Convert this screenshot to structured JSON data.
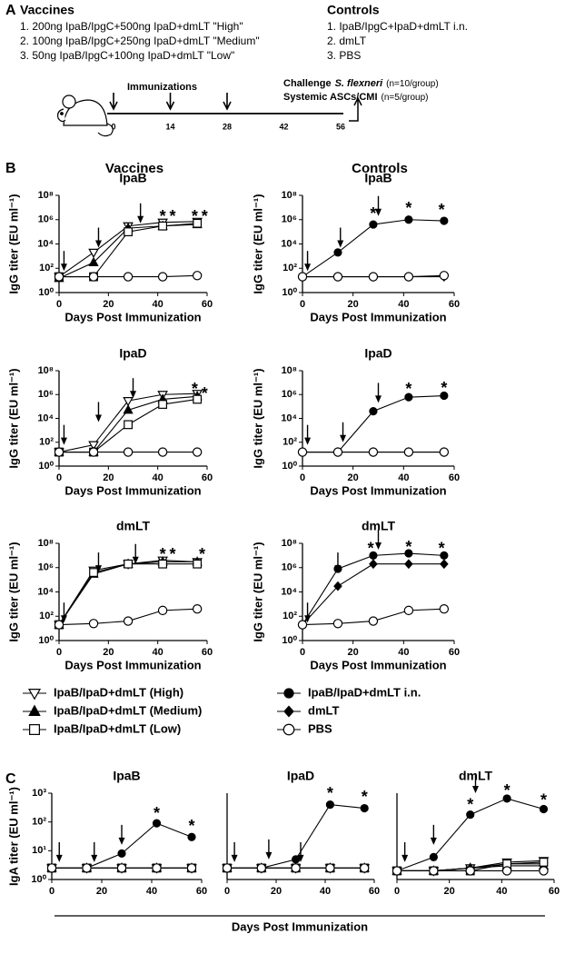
{
  "panel_a": {
    "letter": "A",
    "vaccines": {
      "title": "Vaccines",
      "items": [
        "1. 200ng IpaB/IpgC+500ng IpaD+dmLT \"High\"",
        "2. 100ng IpaB/IpgC+250ng IpaD+dmLT \"Medium\"",
        "3. 50ng IpaB/IpgC+100ng IpaD+dmLT \"Low\""
      ]
    },
    "controls": {
      "title": "Controls",
      "items": [
        "1. IpaB/IpgC+IpaD+dmLT i.n.",
        "2. dmLT",
        "3. PBS"
      ]
    },
    "timeline": {
      "label": "Immunizations",
      "days": [
        0,
        14,
        28,
        42,
        56
      ],
      "immunizations": [
        0,
        14,
        28
      ],
      "challenge": [
        "Challenge",
        "S. flexneri",
        "(n=10/group)"
      ],
      "systemic": [
        "Systemic ASCs/CMI",
        "(n=5/group)"
      ]
    }
  },
  "panel_b": {
    "letter": "B",
    "column_titles": [
      "Vaccines",
      "Controls"
    ],
    "legend": [
      {
        "name": "IpaB/IpaD+dmLT (High)",
        "marker": "triangle-down-open"
      },
      {
        "name": "IpaB/IpaD+dmLT (Medium)",
        "marker": "triangle-up-filled"
      },
      {
        "name": "IpaB/IpaD+dmLT (Low)",
        "marker": "square-open"
      },
      {
        "name": "IpaB/IpaD+dmLT i.n.",
        "marker": "circle-filled"
      },
      {
        "name": "dmLT",
        "marker": "diamond-filled"
      },
      {
        "name": "PBS",
        "marker": "circle-open"
      }
    ]
  },
  "panel_c": {
    "letter": "C",
    "x_label": "Days Post Immunization"
  },
  "chart_data": [
    {
      "type": "line",
      "title": "IpaB",
      "x_label": "Days Post Immunization",
      "y_label": "IgG titer (EU ml⁻¹)",
      "log_y": true,
      "xlim": [
        0,
        60
      ],
      "xticks": [
        0,
        20,
        40,
        60
      ],
      "ylim": [
        1,
        100000000
      ],
      "yticks": [
        {
          "value": 1,
          "label": "10⁰"
        },
        {
          "value": 100,
          "label": "10²"
        },
        {
          "value": 10000,
          "label": "10⁴"
        },
        {
          "value": 1000000,
          "label": "10⁶"
        },
        {
          "value": 100000000,
          "label": "10⁸"
        }
      ],
      "x": [
        0,
        14,
        28,
        42,
        56
      ],
      "series": [
        {
          "marker": "triangle-down-open",
          "values": [
            20,
            2000,
            300000,
            600000,
            700000
          ]
        },
        {
          "marker": "triangle-up-filled",
          "values": [
            15,
            300,
            200000,
            300000,
            400000
          ]
        },
        {
          "marker": "square-open",
          "values": [
            20,
            20,
            100000,
            300000,
            500000
          ]
        },
        {
          "marker": "circle-open",
          "values": [
            20,
            20,
            20,
            20,
            25
          ]
        }
      ],
      "arrows": [
        {
          "x": 2,
          "y": 60
        },
        {
          "x": 16,
          "y": 5000
        },
        {
          "x": 33,
          "y": 500000
        }
      ],
      "annotations": [
        {
          "text": "*",
          "x": 42,
          "y": 3000000
        },
        {
          "text": "*",
          "x": 46,
          "y": 3000000
        },
        {
          "text": "*",
          "x": 55,
          "y": 3000000
        },
        {
          "text": "*",
          "x": 59,
          "y": 3000000
        }
      ]
    },
    {
      "type": "line",
      "title": "IpaB",
      "x_label": "Days Post Immunization",
      "y_label": "IgG titer (EU ml⁻¹)",
      "log_y": true,
      "xlim": [
        0,
        60
      ],
      "xticks": [
        0,
        20,
        40,
        60
      ],
      "ylim": [
        1,
        100000000
      ],
      "yticks": [
        {
          "value": 1,
          "label": "10⁰"
        },
        {
          "value": 100,
          "label": "10²"
        },
        {
          "value": 10000,
          "label": "10⁴"
        },
        {
          "value": 1000000,
          "label": "10⁶"
        },
        {
          "value": 100000000,
          "label": "10⁸"
        }
      ],
      "x": [
        0,
        14,
        28,
        42,
        56
      ],
      "series": [
        {
          "marker": "circle-filled",
          "values": [
            20,
            2000,
            400000,
            1000000,
            800000
          ]
        },
        {
          "marker": "diamond-filled",
          "values": [
            20,
            20,
            20,
            20,
            20
          ]
        },
        {
          "marker": "circle-open",
          "values": [
            20,
            20,
            20,
            20,
            25
          ]
        }
      ],
      "arrows": [
        {
          "x": 2,
          "y": 60
        },
        {
          "x": 15,
          "y": 5000
        },
        {
          "x": 30,
          "y": 2000000
        }
      ],
      "annotations": [
        {
          "text": "*",
          "x": 28,
          "y": 5000000
        },
        {
          "text": "*",
          "x": 42,
          "y": 15000000
        },
        {
          "text": "*",
          "x": 55,
          "y": 10000000
        }
      ]
    },
    {
      "type": "line",
      "title": "IpaD",
      "x_label": "Days Post Immunization",
      "y_label": "IgG titer (EU ml⁻¹)",
      "log_y": true,
      "xlim": [
        0,
        60
      ],
      "xticks": [
        0,
        20,
        40,
        60
      ],
      "ylim": [
        1,
        100000000
      ],
      "yticks": [
        {
          "value": 1,
          "label": "10⁰"
        },
        {
          "value": 100,
          "label": "10²"
        },
        {
          "value": 10000,
          "label": "10⁴"
        },
        {
          "value": 1000000,
          "label": "10⁶"
        },
        {
          "value": 100000000,
          "label": "10⁸"
        }
      ],
      "x": [
        0,
        14,
        28,
        42,
        56
      ],
      "series": [
        {
          "marker": "triangle-down-open",
          "values": [
            15,
            60,
            300000,
            1000000,
            1200000
          ]
        },
        {
          "marker": "triangle-up-filled",
          "values": [
            15,
            15,
            50000,
            400000,
            700000
          ]
        },
        {
          "marker": "square-open",
          "values": [
            15,
            15,
            3000,
            150000,
            400000
          ]
        },
        {
          "marker": "circle-open",
          "values": [
            15,
            15,
            15,
            15,
            15
          ]
        }
      ],
      "arrows": [
        {
          "x": 2,
          "y": 60
        },
        {
          "x": 16,
          "y": 5000
        },
        {
          "x": 30,
          "y": 500000
        }
      ],
      "annotations": [
        {
          "text": "*",
          "x": 55,
          "y": 5000000
        },
        {
          "text": "*",
          "x": 59,
          "y": 2000000
        }
      ]
    },
    {
      "type": "line",
      "title": "IpaD",
      "x_label": "Days Post Immunization",
      "y_label": "IgG titer (EU ml⁻¹)",
      "log_y": true,
      "xlim": [
        0,
        60
      ],
      "xticks": [
        0,
        20,
        40,
        60
      ],
      "ylim": [
        1,
        100000000
      ],
      "yticks": [
        {
          "value": 1,
          "label": "10⁰"
        },
        {
          "value": 100,
          "label": "10²"
        },
        {
          "value": 10000,
          "label": "10⁴"
        },
        {
          "value": 1000000,
          "label": "10⁶"
        },
        {
          "value": 100000000,
          "label": "10⁸"
        }
      ],
      "x": [
        0,
        14,
        28,
        42,
        56
      ],
      "series": [
        {
          "marker": "circle-filled",
          "values": [
            15,
            15,
            40000,
            600000,
            800000
          ]
        },
        {
          "marker": "diamond-filled",
          "values": [
            15,
            15,
            15,
            15,
            15
          ]
        },
        {
          "marker": "circle-open",
          "values": [
            15,
            15,
            15,
            15,
            15
          ]
        }
      ],
      "arrows": [
        {
          "x": 2,
          "y": 60
        },
        {
          "x": 16,
          "y": 100
        },
        {
          "x": 30,
          "y": 200000
        }
      ],
      "annotations": [
        {
          "text": "*",
          "x": 42,
          "y": 5000000
        },
        {
          "text": "*",
          "x": 56,
          "y": 6000000
        }
      ]
    },
    {
      "type": "line",
      "title": "dmLT",
      "x_label": "Days Post Immunization",
      "y_label": "IgG titer (EU ml⁻¹)",
      "log_y": true,
      "xlim": [
        0,
        60
      ],
      "xticks": [
        0,
        20,
        40,
        60
      ],
      "ylim": [
        1,
        100000000
      ],
      "yticks": [
        {
          "value": 1,
          "label": "10⁰"
        },
        {
          "value": 100,
          "label": "10²"
        },
        {
          "value": 10000,
          "label": "10⁴"
        },
        {
          "value": 1000000,
          "label": "10⁶"
        },
        {
          "value": 100000000,
          "label": "10⁸"
        }
      ],
      "x": [
        0,
        14,
        28,
        42,
        56
      ],
      "series": [
        {
          "marker": "triangle-down-open",
          "values": [
            20,
            600000,
            2000000,
            4000000,
            3000000
          ]
        },
        {
          "marker": "triangle-up-filled",
          "values": [
            20,
            300000,
            2000000,
            3000000,
            3000000
          ]
        },
        {
          "marker": "square-open",
          "values": [
            20,
            400000,
            2000000,
            2000000,
            2000000
          ]
        },
        {
          "marker": "circle-open",
          "values": [
            20,
            25,
            40,
            300,
            400
          ]
        }
      ],
      "arrows": [
        {
          "x": 2,
          "y": 30
        },
        {
          "x": 16,
          "y": 400000
        },
        {
          "x": 31,
          "y": 2000000
        }
      ],
      "annotations": [
        {
          "text": "*",
          "x": 42,
          "y": 20000000
        },
        {
          "text": "*",
          "x": 46,
          "y": 20000000
        },
        {
          "text": "*",
          "x": 58,
          "y": 20000000
        }
      ]
    },
    {
      "type": "line",
      "title": "dmLT",
      "x_label": "Days Post Immunization",
      "y_label": "IgG titer (EU ml⁻¹)",
      "log_y": true,
      "xlim": [
        0,
        60
      ],
      "xticks": [
        0,
        20,
        40,
        60
      ],
      "ylim": [
        1,
        100000000
      ],
      "yticks": [
        {
          "value": 1,
          "label": "10⁰"
        },
        {
          "value": 100,
          "label": "10²"
        },
        {
          "value": 10000,
          "label": "10⁴"
        },
        {
          "value": 1000000,
          "label": "10⁶"
        },
        {
          "value": 100000000,
          "label": "10⁸"
        }
      ],
      "x": [
        0,
        14,
        28,
        42,
        56
      ],
      "series": [
        {
          "marker": "circle-filled",
          "values": [
            20,
            800000,
            10000000,
            15000000,
            10000000
          ]
        },
        {
          "marker": "diamond-filled",
          "values": [
            20,
            30000,
            2000000,
            2000000,
            2000000
          ]
        },
        {
          "marker": "circle-open",
          "values": [
            20,
            25,
            40,
            300,
            400
          ]
        }
      ],
      "arrows": [
        {
          "x": 2,
          "y": 30
        },
        {
          "x": 14,
          "y": 400000
        },
        {
          "x": 30,
          "y": 30000000
        }
      ],
      "annotations": [
        {
          "text": "*",
          "x": 27,
          "y": 60000000
        },
        {
          "text": "*",
          "x": 42,
          "y": 80000000
        },
        {
          "text": "*",
          "x": 55,
          "y": 60000000
        }
      ]
    },
    {
      "type": "line",
      "title": "IpaB",
      "y_label": "IgA titer (EU ml⁻¹)",
      "log_y": true,
      "xlim": [
        0,
        60
      ],
      "xticks": [
        0,
        20,
        40,
        60
      ],
      "ylim": [
        1,
        1000
      ],
      "yticks": [
        {
          "value": 1,
          "label": "10⁰"
        },
        {
          "value": 10,
          "label": "10¹"
        },
        {
          "value": 100,
          "label": "10²"
        },
        {
          "value": 1000,
          "label": "10³"
        }
      ],
      "x": [
        0,
        14,
        28,
        42,
        56
      ],
      "series": [
        {
          "marker": "circle-filled",
          "values": [
            2.5,
            2.5,
            8,
            90,
            30
          ]
        },
        {
          "marker": "diamond-filled",
          "values": [
            2.5,
            2.5,
            2.5,
            2.5,
            2.5
          ]
        },
        {
          "marker": "triangle-down-open",
          "values": [
            2.5,
            2.5,
            2.5,
            2.5,
            2.5
          ]
        },
        {
          "marker": "triangle-up-filled",
          "values": [
            2.5,
            2.5,
            2.5,
            2.5,
            2.5
          ]
        },
        {
          "marker": "square-open",
          "values": [
            2.5,
            2.5,
            2.5,
            2.5,
            2.5
          ]
        },
        {
          "marker": "circle-open",
          "values": [
            2.5,
            2.5,
            2.5,
            2.5,
            2.5
          ]
        }
      ],
      "arrows": [
        {
          "x": 3,
          "y": 4
        },
        {
          "x": 17,
          "y": 4
        },
        {
          "x": 28,
          "y": 16
        }
      ],
      "annotations": [
        {
          "text": "*",
          "x": 42,
          "y": 250
        },
        {
          "text": "*",
          "x": 56,
          "y": 90
        }
      ]
    },
    {
      "type": "line",
      "title": "IpaD",
      "log_y": true,
      "xlim": [
        0,
        60
      ],
      "xticks": [
        0,
        20,
        40,
        60
      ],
      "ylim": [
        1,
        1000
      ],
      "x": [
        0,
        14,
        28,
        42,
        56
      ],
      "series": [
        {
          "marker": "circle-filled",
          "values": [
            2.5,
            2.5,
            5,
            400,
            300
          ]
        },
        {
          "marker": "diamond-filled",
          "values": [
            2.5,
            2.5,
            2.5,
            2.5,
            2.5
          ]
        },
        {
          "marker": "triangle-down-open",
          "values": [
            2.5,
            2.5,
            2.5,
            2.5,
            2.5
          ]
        },
        {
          "marker": "triangle-up-filled",
          "values": [
            2.5,
            2.5,
            2.5,
            2.5,
            2.5
          ]
        },
        {
          "marker": "square-open",
          "values": [
            2.5,
            2.5,
            2.5,
            2.5,
            2.5
          ]
        },
        {
          "marker": "circle-open",
          "values": [
            2.5,
            2.5,
            2.5,
            2.5,
            2.5
          ]
        }
      ],
      "arrows": [
        {
          "x": 3,
          "y": 4
        },
        {
          "x": 17,
          "y": 5
        },
        {
          "x": 30,
          "y": 4
        }
      ],
      "annotations": [
        {
          "text": "*",
          "x": 42,
          "y": 1200
        },
        {
          "text": "*",
          "x": 56,
          "y": 900
        }
      ]
    },
    {
      "type": "line",
      "title": "dmLT",
      "log_y": true,
      "xlim": [
        0,
        60
      ],
      "xticks": [
        0,
        20,
        40,
        60
      ],
      "ylim": [
        1,
        1000
      ],
      "x": [
        0,
        14,
        28,
        42,
        56
      ],
      "series": [
        {
          "marker": "circle-filled",
          "values": [
            2,
            6,
            180,
            650,
            280
          ]
        },
        {
          "marker": "diamond-filled",
          "values": [
            2,
            2,
            2.5,
            3.5,
            3.5
          ]
        },
        {
          "marker": "triangle-down-open",
          "values": [
            2,
            2,
            2.5,
            4,
            4.5
          ]
        },
        {
          "marker": "triangle-up-filled",
          "values": [
            2,
            2,
            2.5,
            3,
            3
          ]
        },
        {
          "marker": "square-open",
          "values": [
            2,
            2,
            2,
            3.5,
            4
          ]
        },
        {
          "marker": "circle-open",
          "values": [
            2,
            2,
            2,
            2,
            2
          ]
        }
      ],
      "arrows": [
        {
          "x": 3,
          "y": 4
        },
        {
          "x": 14,
          "y": 16
        },
        {
          "x": 30,
          "y": 1000
        }
      ],
      "annotations": [
        {
          "text": "*",
          "x": 28,
          "y": 500
        },
        {
          "text": "*",
          "x": 42,
          "y": 1500
        },
        {
          "text": "*",
          "x": 56,
          "y": 700
        }
      ]
    }
  ]
}
